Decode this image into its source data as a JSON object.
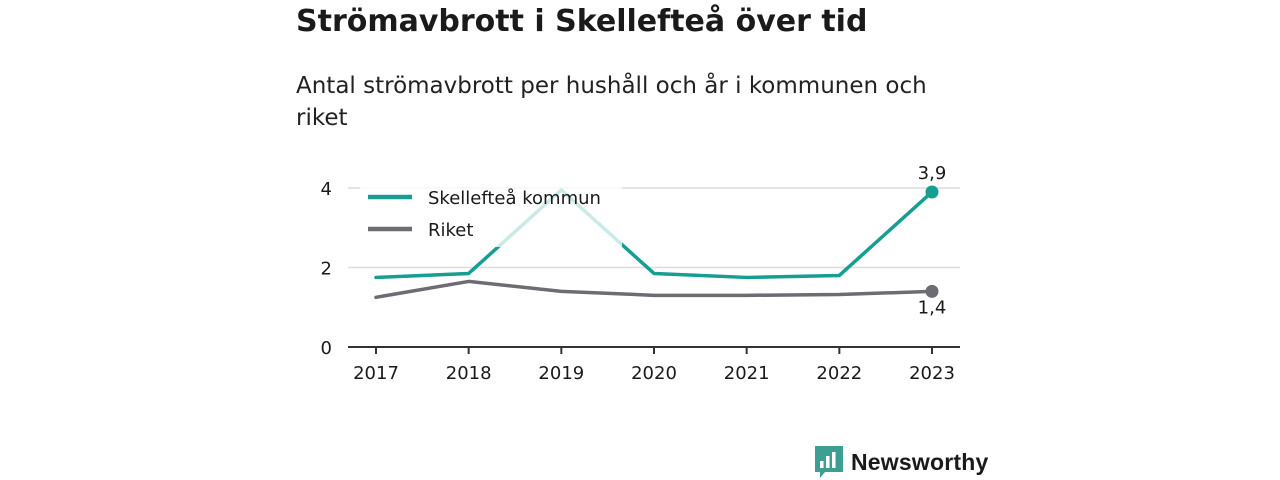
{
  "header": {
    "title": "Strömavbrott i Skellefteå över tid",
    "subtitle": "Antal strömavbrott per hushåll och år i kommunen och riket"
  },
  "brand": {
    "name": "Newsworthy",
    "icon": "newsworthy-bar-chart-icon",
    "color": "#3d9e94"
  },
  "chart_data": {
    "type": "line",
    "x": [
      "2017",
      "2018",
      "2019",
      "2020",
      "2021",
      "2022",
      "2023"
    ],
    "series": [
      {
        "name": "Skellefteå kommun",
        "color": "#159e91",
        "values": [
          1.75,
          1.85,
          3.95,
          1.85,
          1.75,
          1.8,
          3.9
        ]
      },
      {
        "name": "Riket",
        "color": "#6e6c73",
        "values": [
          1.25,
          1.65,
          1.4,
          1.3,
          1.3,
          1.32,
          1.4
        ]
      }
    ],
    "yticks": [
      "0",
      "2",
      "4"
    ],
    "ylim": [
      0,
      4
    ],
    "grid": true,
    "legend": "top-left",
    "end_labels": [
      "3,9",
      "1,4"
    ]
  }
}
